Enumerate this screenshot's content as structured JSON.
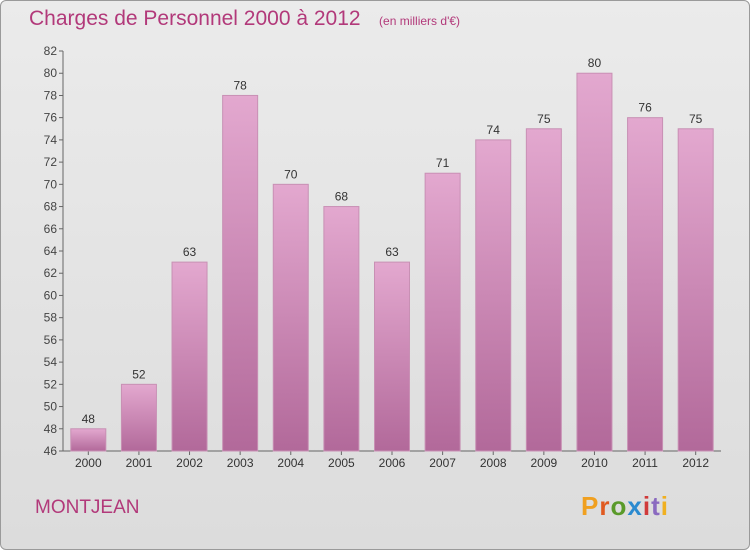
{
  "header": {
    "title": "Charges de Personnel 2000 à 2012",
    "subtitle": "(en milliers d'€)"
  },
  "commune": "MONTJEAN",
  "brand": "Proxiti",
  "colors": {
    "bar_top": "#e3a8cf",
    "bar_bottom": "#b2699a",
    "title": "#b2397a",
    "axis": "#666666"
  },
  "chart_data": {
    "type": "bar",
    "title": "Charges de Personnel 2000 à 2012",
    "subtitle": "(en milliers d'€)",
    "categories": [
      "2000",
      "2001",
      "2002",
      "2003",
      "2004",
      "2005",
      "2006",
      "2007",
      "2008",
      "2009",
      "2010",
      "2011",
      "2012"
    ],
    "values": [
      48,
      52,
      63,
      78,
      70,
      68,
      63,
      71,
      74,
      75,
      80,
      76,
      75
    ],
    "ylim": [
      46,
      82
    ],
    "yticks": [
      46,
      48,
      50,
      52,
      54,
      56,
      58,
      60,
      62,
      64,
      66,
      68,
      70,
      72,
      74,
      76,
      78,
      80,
      82
    ],
    "grid": false,
    "legend": "none"
  }
}
